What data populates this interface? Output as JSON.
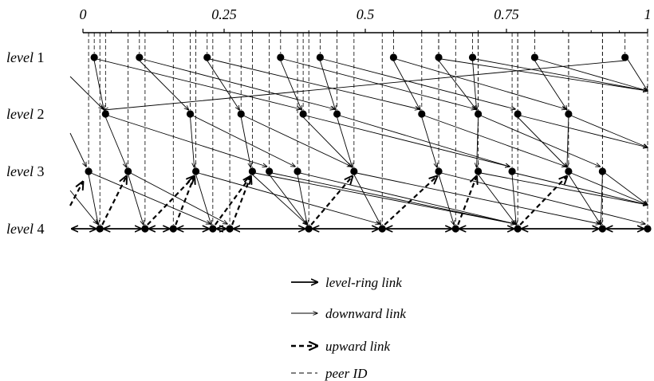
{
  "axis": {
    "ticks": [
      {
        "value": 0,
        "label": "0"
      },
      {
        "value": 0.25,
        "label": "0.25"
      },
      {
        "value": 0.5,
        "label": "0.5"
      },
      {
        "value": 0.75,
        "label": "0.75"
      },
      {
        "value": 1,
        "label": "1"
      }
    ]
  },
  "levels": [
    {
      "word": "level",
      "num": "1"
    },
    {
      "word": "level",
      "num": "2"
    },
    {
      "word": "level",
      "num": "3"
    },
    {
      "word": "level",
      "num": "4"
    }
  ],
  "peers": {
    "level1": [
      0.02,
      0.1,
      0.22,
      0.35,
      0.42,
      0.55,
      0.63,
      0.69,
      0.8,
      0.96
    ],
    "level2": [
      0.04,
      0.19,
      0.28,
      0.39,
      0.45,
      0.6,
      0.7,
      0.77,
      0.86
    ],
    "level3": [
      0.01,
      0.08,
      0.2,
      0.3,
      0.33,
      0.38,
      0.48,
      0.63,
      0.7,
      0.76,
      0.86,
      0.92
    ],
    "level4": [
      0.03,
      0.11,
      0.16,
      0.23,
      0.26,
      0.4,
      0.53,
      0.66,
      0.77,
      0.92,
      1.0
    ]
  },
  "legend": [
    {
      "style": "ring",
      "label": "level-ring link"
    },
    {
      "style": "down",
      "label": "downward link"
    },
    {
      "style": "up",
      "label": "upward link"
    },
    {
      "style": "peer",
      "label": "peer ID"
    }
  ]
}
